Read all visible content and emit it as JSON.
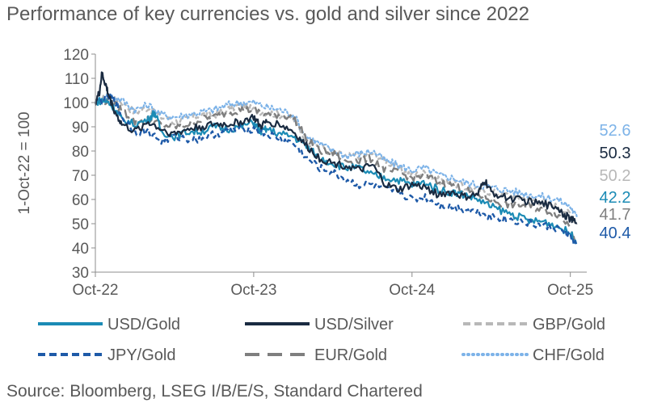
{
  "title": "Performance of key currencies vs. gold and silver since 2022",
  "source": "Source: Bloomberg, LSEG I/B/E/S, Standard Chartered",
  "chart_data": {
    "type": "line",
    "title": "Performance of key currencies vs. gold and silver since 2022",
    "xlabel": "",
    "ylabel": "1-Oct-22 = 100",
    "ylim": [
      30,
      120
    ],
    "yticks": [
      30,
      40,
      50,
      60,
      70,
      80,
      90,
      100,
      110,
      120
    ],
    "xticks": [
      "Oct-22",
      "Oct-23",
      "Oct-24",
      "Oct-25"
    ],
    "xlim_months": [
      0,
      37
    ],
    "legend_position": "bottom",
    "series": [
      {
        "name": "USD/Gold",
        "color": "#1B8BB5",
        "style": "solid",
        "end_label": "42.2",
        "end_value": 42.2,
        "points": [
          [
            0,
            100
          ],
          [
            0.5,
            101
          ],
          [
            1,
            100
          ],
          [
            1.5,
            97
          ],
          [
            2,
            93
          ],
          [
            3,
            91
          ],
          [
            4,
            93
          ],
          [
            4.5,
            96
          ],
          [
            5,
            88
          ],
          [
            6,
            86
          ],
          [
            7,
            88
          ],
          [
            8,
            88
          ],
          [
            9,
            90
          ],
          [
            10,
            89
          ],
          [
            11,
            90
          ],
          [
            12,
            92
          ],
          [
            12.5,
            88
          ],
          [
            13,
            89
          ],
          [
            14,
            87
          ],
          [
            15,
            86
          ],
          [
            16,
            82
          ],
          [
            17,
            77
          ],
          [
            18,
            75
          ],
          [
            19,
            73
          ],
          [
            20,
            73
          ],
          [
            21,
            70
          ],
          [
            22,
            69
          ],
          [
            23,
            68
          ],
          [
            24,
            66
          ],
          [
            25,
            67
          ],
          [
            26,
            64
          ],
          [
            27,
            63
          ],
          [
            28,
            62
          ],
          [
            29,
            60
          ],
          [
            30,
            57
          ],
          [
            31,
            55
          ],
          [
            32,
            53
          ],
          [
            33,
            51
          ],
          [
            34,
            51
          ],
          [
            35,
            49
          ],
          [
            36,
            46
          ],
          [
            36.5,
            42.2
          ]
        ]
      },
      {
        "name": "USD/Silver",
        "color": "#1A2B41",
        "style": "solid",
        "end_label": "50.3",
        "end_value": 50.3,
        "points": [
          [
            0,
            100
          ],
          [
            0.3,
            104
          ],
          [
            0.5,
            112
          ],
          [
            0.8,
            107
          ],
          [
            1,
            103
          ],
          [
            1.5,
            96
          ],
          [
            2,
            91
          ],
          [
            3,
            88
          ],
          [
            4,
            92
          ],
          [
            5,
            89
          ],
          [
            6,
            87
          ],
          [
            7,
            89
          ],
          [
            8,
            90
          ],
          [
            9,
            91
          ],
          [
            10,
            91
          ],
          [
            11,
            92
          ],
          [
            12,
            94
          ],
          [
            12.5,
            90
          ],
          [
            13,
            92
          ],
          [
            14,
            91
          ],
          [
            15,
            88
          ],
          [
            16,
            82
          ],
          [
            17,
            77
          ],
          [
            18,
            75
          ],
          [
            19,
            74
          ],
          [
            20,
            72
          ],
          [
            21,
            74
          ],
          [
            22,
            66
          ],
          [
            23,
            64
          ],
          [
            24,
            66
          ],
          [
            25,
            65
          ],
          [
            26,
            62
          ],
          [
            27,
            63
          ],
          [
            28,
            61
          ],
          [
            29,
            62
          ],
          [
            29.5,
            68
          ],
          [
            30,
            63
          ],
          [
            31,
            61
          ],
          [
            32,
            60
          ],
          [
            33,
            59
          ],
          [
            34,
            58
          ],
          [
            35,
            57
          ],
          [
            35.5,
            54
          ],
          [
            36,
            52
          ],
          [
            36.5,
            50.3
          ]
        ]
      },
      {
        "name": "GBP/Gold",
        "color": "#B8B8B8",
        "style": "dashed",
        "end_label": "50.2",
        "end_value": 50.2,
        "points": [
          [
            0,
            100
          ],
          [
            1,
            103
          ],
          [
            2,
            100
          ],
          [
            3,
            96
          ],
          [
            4,
            98
          ],
          [
            5,
            94
          ],
          [
            6,
            92
          ],
          [
            7,
            93
          ],
          [
            8,
            95
          ],
          [
            9,
            95
          ],
          [
            10,
            97
          ],
          [
            11,
            99
          ],
          [
            12,
            97
          ],
          [
            13,
            96
          ],
          [
            14,
            95
          ],
          [
            15,
            93
          ],
          [
            16,
            84
          ],
          [
            17,
            82
          ],
          [
            18,
            79
          ],
          [
            19,
            78
          ],
          [
            20,
            78
          ],
          [
            21,
            79
          ],
          [
            22,
            76
          ],
          [
            23,
            73
          ],
          [
            24,
            70
          ],
          [
            25,
            71
          ],
          [
            26,
            68
          ],
          [
            27,
            67
          ],
          [
            28,
            65
          ],
          [
            29,
            64
          ],
          [
            30,
            63
          ],
          [
            31,
            62
          ],
          [
            32,
            61
          ],
          [
            33,
            60
          ],
          [
            34,
            59
          ],
          [
            35,
            57
          ],
          [
            36,
            54
          ],
          [
            36.5,
            50.2
          ]
        ]
      },
      {
        "name": "JPY/Gold",
        "color": "#1E5AA8",
        "style": "dashed",
        "end_label": "40.4",
        "end_value": 40.4,
        "points": [
          [
            0,
            100
          ],
          [
            1,
            102
          ],
          [
            1.5,
            101
          ],
          [
            2,
            94
          ],
          [
            3,
            88
          ],
          [
            4,
            88
          ],
          [
            5,
            84
          ],
          [
            6,
            86
          ],
          [
            7,
            85
          ],
          [
            8,
            85
          ],
          [
            9,
            87
          ],
          [
            10,
            88
          ],
          [
            11,
            89
          ],
          [
            12,
            89
          ],
          [
            13,
            87
          ],
          [
            14,
            85
          ],
          [
            15,
            83
          ],
          [
            16,
            77
          ],
          [
            17,
            73
          ],
          [
            18,
            71
          ],
          [
            19,
            68
          ],
          [
            20,
            66
          ],
          [
            21,
            66
          ],
          [
            22,
            64
          ],
          [
            23,
            63
          ],
          [
            24,
            60
          ],
          [
            25,
            61
          ],
          [
            26,
            58
          ],
          [
            27,
            57
          ],
          [
            28,
            56
          ],
          [
            29,
            55
          ],
          [
            30,
            53
          ],
          [
            31,
            52
          ],
          [
            32,
            51
          ],
          [
            33,
            50
          ],
          [
            34,
            49
          ],
          [
            35,
            48
          ],
          [
            36,
            45
          ],
          [
            36.5,
            40.4
          ]
        ]
      },
      {
        "name": "EUR/Gold",
        "color": "#7F7F7F",
        "style": "longdash",
        "end_label": "41.7",
        "end_value": 41.7,
        "points": [
          [
            0,
            100
          ],
          [
            1,
            101
          ],
          [
            2,
            97
          ],
          [
            3,
            92
          ],
          [
            4,
            93
          ],
          [
            5,
            91
          ],
          [
            6,
            90
          ],
          [
            7,
            91
          ],
          [
            8,
            93
          ],
          [
            9,
            94
          ],
          [
            10,
            96
          ],
          [
            11,
            97
          ],
          [
            12,
            97
          ],
          [
            13,
            95
          ],
          [
            14,
            95
          ],
          [
            15,
            94
          ],
          [
            16,
            85
          ],
          [
            17,
            80
          ],
          [
            18,
            79
          ],
          [
            19,
            76
          ],
          [
            20,
            76
          ],
          [
            21,
            77
          ],
          [
            22,
            72
          ],
          [
            23,
            71
          ],
          [
            24,
            69
          ],
          [
            25,
            70
          ],
          [
            26,
            67
          ],
          [
            27,
            66
          ],
          [
            28,
            64
          ],
          [
            29,
            62
          ],
          [
            30,
            60
          ],
          [
            31,
            58
          ],
          [
            32,
            58
          ],
          [
            33,
            57
          ],
          [
            34,
            56
          ],
          [
            35,
            54
          ],
          [
            36,
            49
          ],
          [
            36.5,
            41.7
          ]
        ]
      },
      {
        "name": "CHF/Gold",
        "color": "#7DB3E8",
        "style": "dotted",
        "end_label": "52.6",
        "end_value": 52.6,
        "points": [
          [
            0,
            100
          ],
          [
            1,
            103
          ],
          [
            2,
            101
          ],
          [
            3,
            97
          ],
          [
            4,
            99
          ],
          [
            5,
            95
          ],
          [
            6,
            94
          ],
          [
            7,
            95
          ],
          [
            8,
            96
          ],
          [
            9,
            97
          ],
          [
            10,
            99
          ],
          [
            11,
            100
          ],
          [
            12,
            100
          ],
          [
            13,
            98
          ],
          [
            14,
            97
          ],
          [
            15,
            95
          ],
          [
            16,
            86
          ],
          [
            17,
            83
          ],
          [
            18,
            80
          ],
          [
            19,
            78
          ],
          [
            20,
            79
          ],
          [
            21,
            80
          ],
          [
            22,
            76
          ],
          [
            23,
            74
          ],
          [
            24,
            72
          ],
          [
            25,
            73
          ],
          [
            26,
            70
          ],
          [
            27,
            69
          ],
          [
            28,
            67
          ],
          [
            29,
            66
          ],
          [
            30,
            65
          ],
          [
            31,
            64
          ],
          [
            32,
            63
          ],
          [
            33,
            62
          ],
          [
            34,
            61
          ],
          [
            35,
            60
          ],
          [
            36,
            57
          ],
          [
            36.5,
            52.6
          ]
        ]
      }
    ]
  }
}
